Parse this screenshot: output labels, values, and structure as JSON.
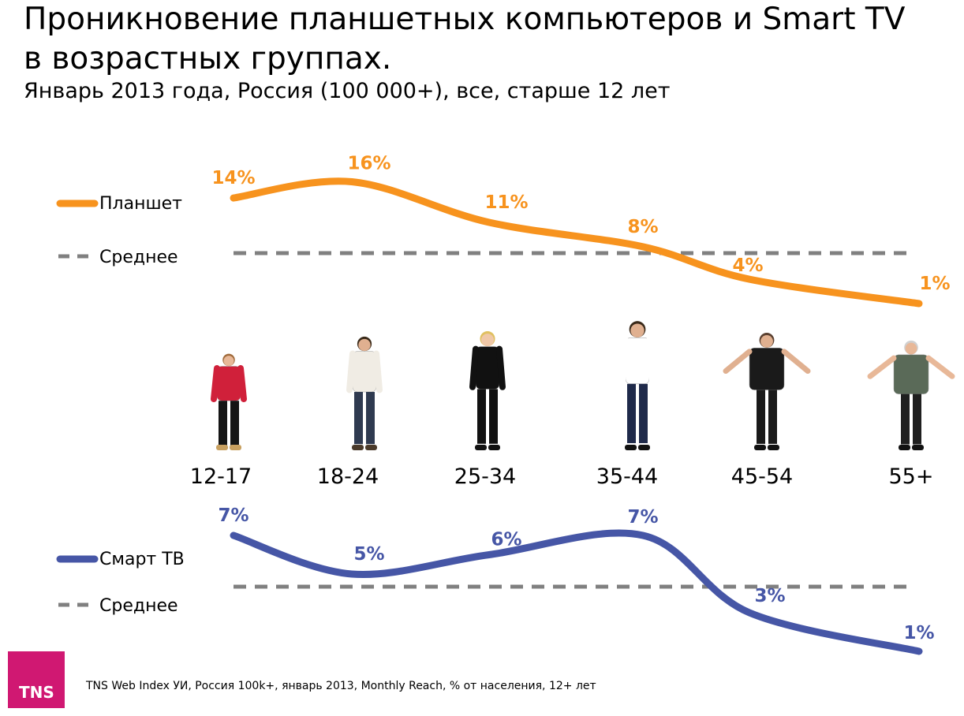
{
  "title": "Проникновение планшетных компьютеров и Smart TV в возрастных группах.",
  "subtitle": "Январь 2013 года, Россия (100 000+), все, старше 12 лет",
  "footnote": "TNS Web Index  УИ, Россия 100k+, январь 2013, Monthly Reach, % от населения, 12+ лет",
  "logo_text": "TNS",
  "colors": {
    "tablet": "#f7931e",
    "smart_tv": "#4656a6",
    "average": "#808080"
  },
  "chart_data": [
    {
      "type": "line",
      "categories": [
        "12-17",
        "18-24",
        "25-34",
        "35-44",
        "45-54",
        "55+"
      ],
      "series": [
        {
          "name": "Планшет",
          "values": [
            14,
            16,
            11,
            8,
            4,
            1
          ],
          "labels": [
            "14%",
            "16%",
            "11%",
            "8%",
            "4%",
            "1%"
          ]
        }
      ],
      "average_label": "Среднее"
    },
    {
      "type": "line",
      "categories": [
        "12-17",
        "18-24",
        "25-34",
        "35-44",
        "45-54",
        "55+"
      ],
      "series": [
        {
          "name": "Смарт ТВ",
          "values": [
            7,
            5,
            6,
            7,
            3,
            1
          ],
          "labels": [
            "7%",
            "5%",
            "6%",
            "7%",
            "3%",
            "1%"
          ]
        }
      ],
      "average_label": "Среднее"
    }
  ],
  "people": [
    {
      "name": "teen-girl",
      "shirt": "#d0203a",
      "pants": "#151515",
      "shoes": "#c8a060",
      "skin": "#e8b898",
      "hair": "#a06a3a"
    },
    {
      "name": "young-man",
      "shirt": "#f0ece4",
      "pants": "#2f3a50",
      "shoes": "#4a3a2a",
      "skin": "#e0b090",
      "hair": "#3a2a1a"
    },
    {
      "name": "business-woman",
      "shirt": "#111111",
      "pants": "#111111",
      "shoes": "#111111",
      "skin": "#f0c8a8",
      "hair": "#e0c060"
    },
    {
      "name": "business-man",
      "shirt": "#ffffff",
      "pants": "#1f2a4a",
      "shoes": "#111111",
      "skin": "#e0b090",
      "hair": "#3a2a1a"
    },
    {
      "name": "seated-man",
      "shirt": "#1a1a1a",
      "pants": "#1a1a1a",
      "shoes": "#111111",
      "skin": "#e0b090",
      "hair": "#5a4030"
    },
    {
      "name": "senior-man",
      "shirt": "#5a6a58",
      "pants": "#1f1f1f",
      "shoes": "#111111",
      "skin": "#e8b898",
      "hair": "#d0d0d0"
    }
  ]
}
